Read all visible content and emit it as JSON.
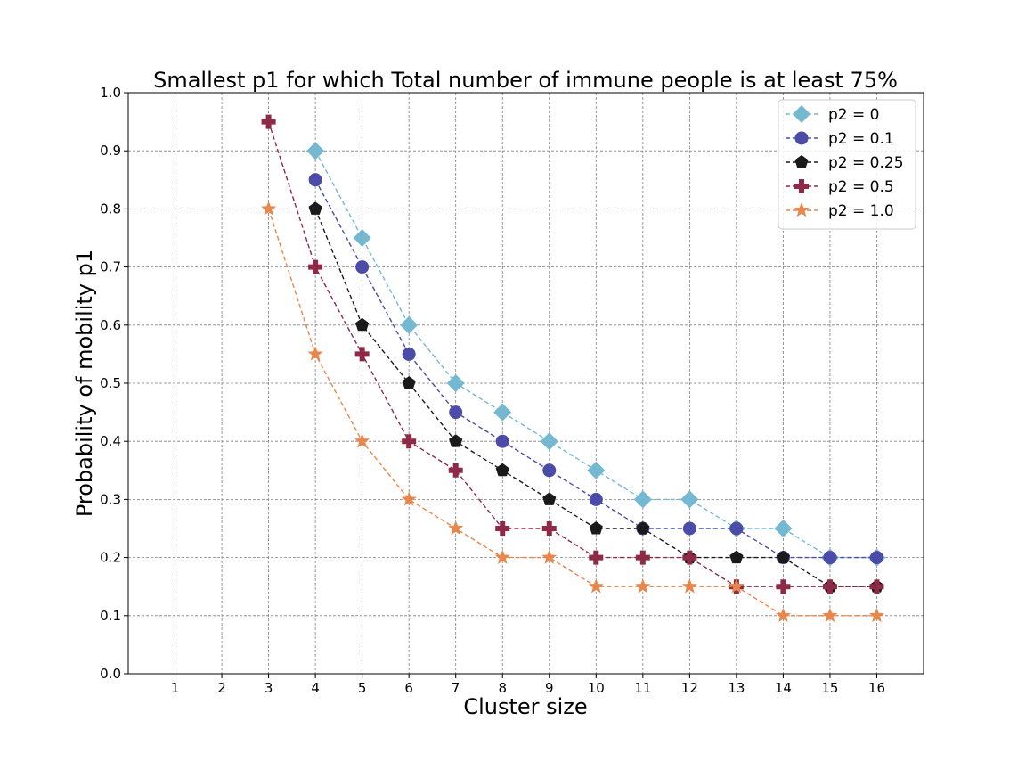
{
  "chart_data": {
    "type": "line",
    "title": "Smallest p1 for which Total number of immune people is at least 75%",
    "xlabel": "Cluster size",
    "ylabel": "Probability of mobility p1",
    "xlim": [
      0,
      17
    ],
    "ylim": [
      0.0,
      1.0
    ],
    "xticks": [
      1,
      2,
      3,
      4,
      5,
      6,
      7,
      8,
      9,
      10,
      11,
      12,
      13,
      14,
      15,
      16
    ],
    "yticks": [
      0.0,
      0.1,
      0.2,
      0.3,
      0.4,
      0.5,
      0.6,
      0.7,
      0.8,
      0.9,
      1.0
    ],
    "ytick_labels": [
      "0.0",
      "0.1",
      "0.2",
      "0.3",
      "0.4",
      "0.5",
      "0.6",
      "0.7",
      "0.8",
      "0.9",
      "1.0"
    ],
    "grid": true,
    "legend_position": "top-right",
    "series": [
      {
        "name": "p2 = 0",
        "color": "#74b8d2",
        "marker": "diamond",
        "x": [
          4,
          5,
          6,
          7,
          8,
          9,
          10,
          11,
          12,
          13,
          14,
          15,
          16
        ],
        "values": [
          0.9,
          0.75,
          0.6,
          0.5,
          0.45,
          0.4,
          0.35,
          0.3,
          0.3,
          0.25,
          0.25,
          0.2,
          0.2
        ]
      },
      {
        "name": "p2 = 0.1",
        "color": "#4a4ca7",
        "marker": "circle",
        "x": [
          4,
          5,
          6,
          7,
          8,
          9,
          10,
          11,
          12,
          13,
          14,
          15,
          16
        ],
        "values": [
          0.85,
          0.7,
          0.55,
          0.45,
          0.4,
          0.35,
          0.3,
          0.25,
          0.25,
          0.25,
          0.2,
          0.2,
          0.2
        ]
      },
      {
        "name": "p2 = 0.25",
        "color": "#1a1a1a",
        "marker": "pentagon",
        "x": [
          4,
          5,
          6,
          7,
          8,
          9,
          10,
          11,
          12,
          13,
          14,
          15,
          16
        ],
        "values": [
          0.8,
          0.6,
          0.5,
          0.4,
          0.35,
          0.3,
          0.25,
          0.25,
          0.2,
          0.2,
          0.2,
          0.15,
          0.15
        ]
      },
      {
        "name": "p2 = 0.5",
        "color": "#8e2a45",
        "marker": "plus",
        "x": [
          3,
          4,
          5,
          6,
          7,
          8,
          9,
          10,
          11,
          12,
          13,
          14,
          15,
          16
        ],
        "values": [
          0.95,
          0.7,
          0.55,
          0.4,
          0.35,
          0.25,
          0.25,
          0.2,
          0.2,
          0.2,
          0.15,
          0.15,
          0.15,
          0.15
        ]
      },
      {
        "name": "p2 = 1.0",
        "color": "#e8864b",
        "marker": "star",
        "x": [
          3,
          4,
          5,
          6,
          7,
          8,
          9,
          10,
          11,
          12,
          13,
          14,
          15,
          16
        ],
        "values": [
          0.8,
          0.55,
          0.4,
          0.3,
          0.25,
          0.2,
          0.2,
          0.15,
          0.15,
          0.15,
          0.15,
          0.1,
          0.1,
          0.1
        ]
      }
    ]
  }
}
